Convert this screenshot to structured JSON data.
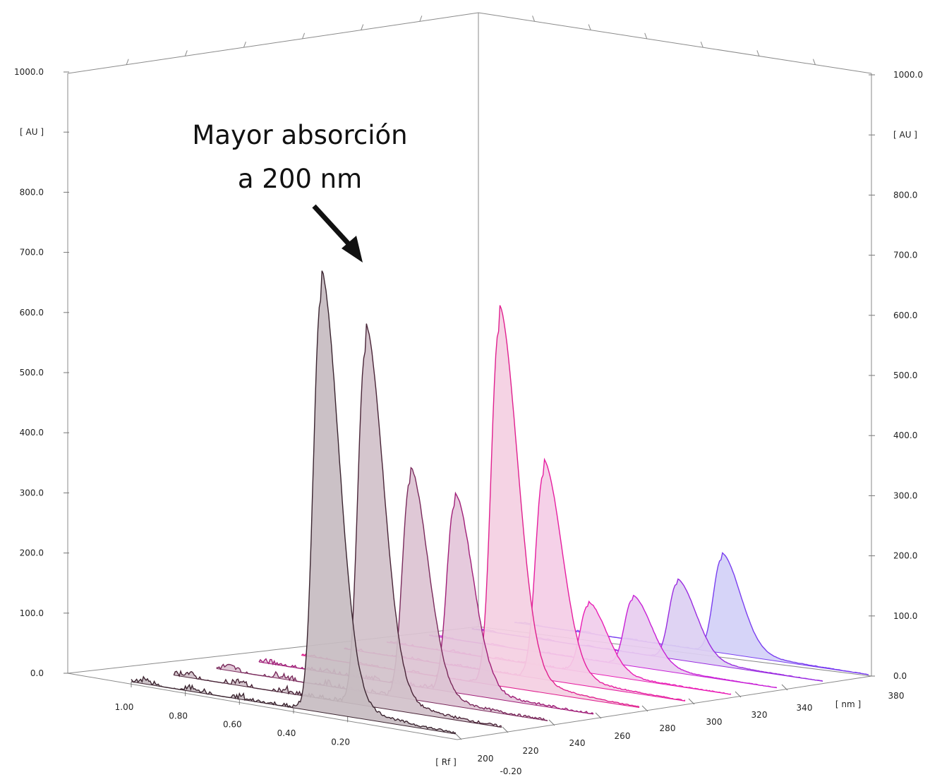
{
  "chart_data": {
    "type": "area",
    "view": "3D waterfall of densitograms (absorbance vs Rf) stacked by wavelength",
    "z_axis": {
      "unit_label": "[ nm ]",
      "ticks": [
        "200",
        "220",
        "240",
        "260",
        "280",
        "300",
        "320",
        "340",
        "380"
      ]
    },
    "x_axis": {
      "unit_label": "[ Rf ]",
      "ticks": [
        "1.00",
        "0.80",
        "0.60",
        "0.40",
        "0.20",
        "-0.20"
      ],
      "range": [
        -0.2,
        1.0
      ]
    },
    "y_axis": {
      "unit_label": "[ AU ]",
      "ticks": [
        "0.0",
        "100.0",
        "200.0",
        "300.0",
        "400.0",
        "500.0",
        "600.0",
        "700.0",
        "800.0",
        "1000.0"
      ],
      "range": [
        0,
        1000
      ]
    },
    "peak_rf": 0.3,
    "series": [
      {
        "wavelength": 200,
        "peak_au": 685,
        "color": "#3b2530",
        "fill": "#c7bcc1"
      },
      {
        "wavelength": 220,
        "peak_au": 590,
        "color": "#4a2538",
        "fill": "#d1c1ca"
      },
      {
        "wavelength": 240,
        "peak_au": 360,
        "color": "#7a2a5c",
        "fill": "#dcc3d3"
      },
      {
        "wavelength": 260,
        "peak_au": 310,
        "color": "#a01f78",
        "fill": "#e4c6da"
      },
      {
        "wavelength": 280,
        "peak_au": 590,
        "color": "#e0208f",
        "fill": "#f4cfe2"
      },
      {
        "wavelength": 300,
        "peak_au": 340,
        "color": "#e61ea0",
        "fill": "#f4cde6"
      },
      {
        "wavelength": 320,
        "peak_au": 110,
        "color": "#e91eb5",
        "fill": "#f1cdeb"
      },
      {
        "wavelength": 340,
        "peak_au": 110,
        "color": "#c81fd6",
        "fill": "#e8cdf0"
      },
      {
        "wavelength": 360,
        "peak_au": 125,
        "color": "#9a2be0",
        "fill": "#dccff2"
      },
      {
        "wavelength": 380,
        "peak_au": 155,
        "color": "#7a3ef0",
        "fill": "#d2d0f7"
      }
    ],
    "annotation": {
      "lines": [
        "Mayor absorción",
        "a 200 nm"
      ]
    }
  }
}
